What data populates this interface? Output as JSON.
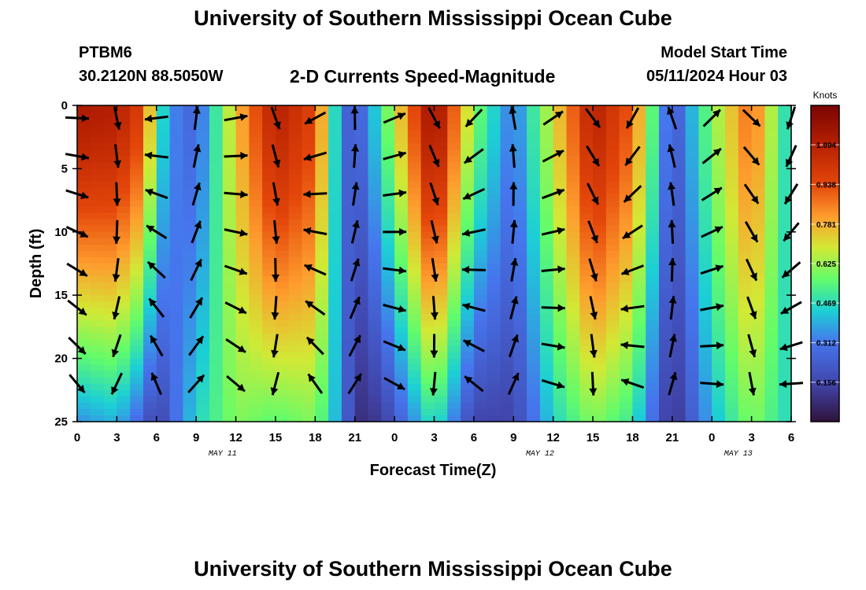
{
  "header": {
    "title_top": "University of Southern Mississippi Ocean Cube",
    "station": "PTBM6",
    "coords": "30.2120N  88.5050W",
    "main_title": "2-D Currents Speed-Magnitude",
    "model_label": "Model Start Time",
    "model_time": "05/11/2024 Hour 03",
    "title_bottom": "University of Southern Mississippi Ocean Cube"
  },
  "chart_data": {
    "type": "heatmap",
    "title": "2-D Currents Speed-Magnitude",
    "xlabel": "Forecast Time(Z)",
    "ylabel": "Depth (ft)",
    "x_range_hours": [
      0,
      54
    ],
    "y_range_ft": [
      0,
      25
    ],
    "y_inverted": true,
    "x_ticks": [
      "0",
      "3",
      "6",
      "9",
      "12",
      "15",
      "18",
      "21",
      "0",
      "3",
      "6",
      "9",
      "12",
      "15",
      "18",
      "21",
      "0",
      "3",
      "6"
    ],
    "y_ticks": [
      "0",
      "5",
      "10",
      "15",
      "20",
      "25"
    ],
    "date_labels": [
      {
        "hour": 11,
        "text": "MAY 11"
      },
      {
        "hour": 35,
        "text": "MAY 12"
      },
      {
        "hour": 50,
        "text": "MAY 13"
      }
    ],
    "colorbar": {
      "unit": "Knots",
      "range": [
        0.0,
        1.25
      ],
      "ticks": [
        "0.156",
        "0.312",
        "0.469",
        "0.625",
        "0.781",
        "0.938",
        "1.094"
      ]
    },
    "speed_profile_by_hour": [
      {
        "hour": 0,
        "surface": 1.12,
        "bottom": 0.35
      },
      {
        "hour": 3,
        "surface": 1.1,
        "bottom": 0.4
      },
      {
        "hour": 5,
        "surface": 0.95,
        "bottom": 0.25
      },
      {
        "hour": 6,
        "surface": 0.55,
        "bottom": 0.12
      },
      {
        "hour": 7,
        "surface": 0.35,
        "bottom": 0.25
      },
      {
        "hour": 9,
        "surface": 0.25,
        "bottom": 0.45
      },
      {
        "hour": 12,
        "surface": 0.75,
        "bottom": 0.6
      },
      {
        "hour": 15,
        "surface": 1.1,
        "bottom": 0.55
      },
      {
        "hour": 18,
        "surface": 0.95,
        "bottom": 0.6
      },
      {
        "hour": 20,
        "surface": 0.3,
        "bottom": 0.35
      },
      {
        "hour": 21,
        "surface": 0.2,
        "bottom": 0.08
      },
      {
        "hour": 23,
        "surface": 0.5,
        "bottom": 0.12
      },
      {
        "hour": 27,
        "surface": 1.2,
        "bottom": 0.5
      },
      {
        "hour": 30,
        "surface": 0.6,
        "bottom": 0.15
      },
      {
        "hour": 33,
        "surface": 0.3,
        "bottom": 0.15
      },
      {
        "hour": 36,
        "surface": 0.7,
        "bottom": 0.45
      },
      {
        "hour": 39,
        "surface": 1.1,
        "bottom": 0.6
      },
      {
        "hour": 42,
        "surface": 0.9,
        "bottom": 0.5
      },
      {
        "hour": 45,
        "surface": 0.2,
        "bottom": 0.08
      },
      {
        "hour": 48,
        "surface": 0.6,
        "bottom": 0.4
      },
      {
        "hour": 51,
        "surface": 0.9,
        "bottom": 0.6
      },
      {
        "hour": 54,
        "surface": 0.4,
        "bottom": 0.45
      }
    ],
    "vectors": "arrows at each 3-hour column indicating current direction (predominantly NW-SE reversing with tide)"
  }
}
